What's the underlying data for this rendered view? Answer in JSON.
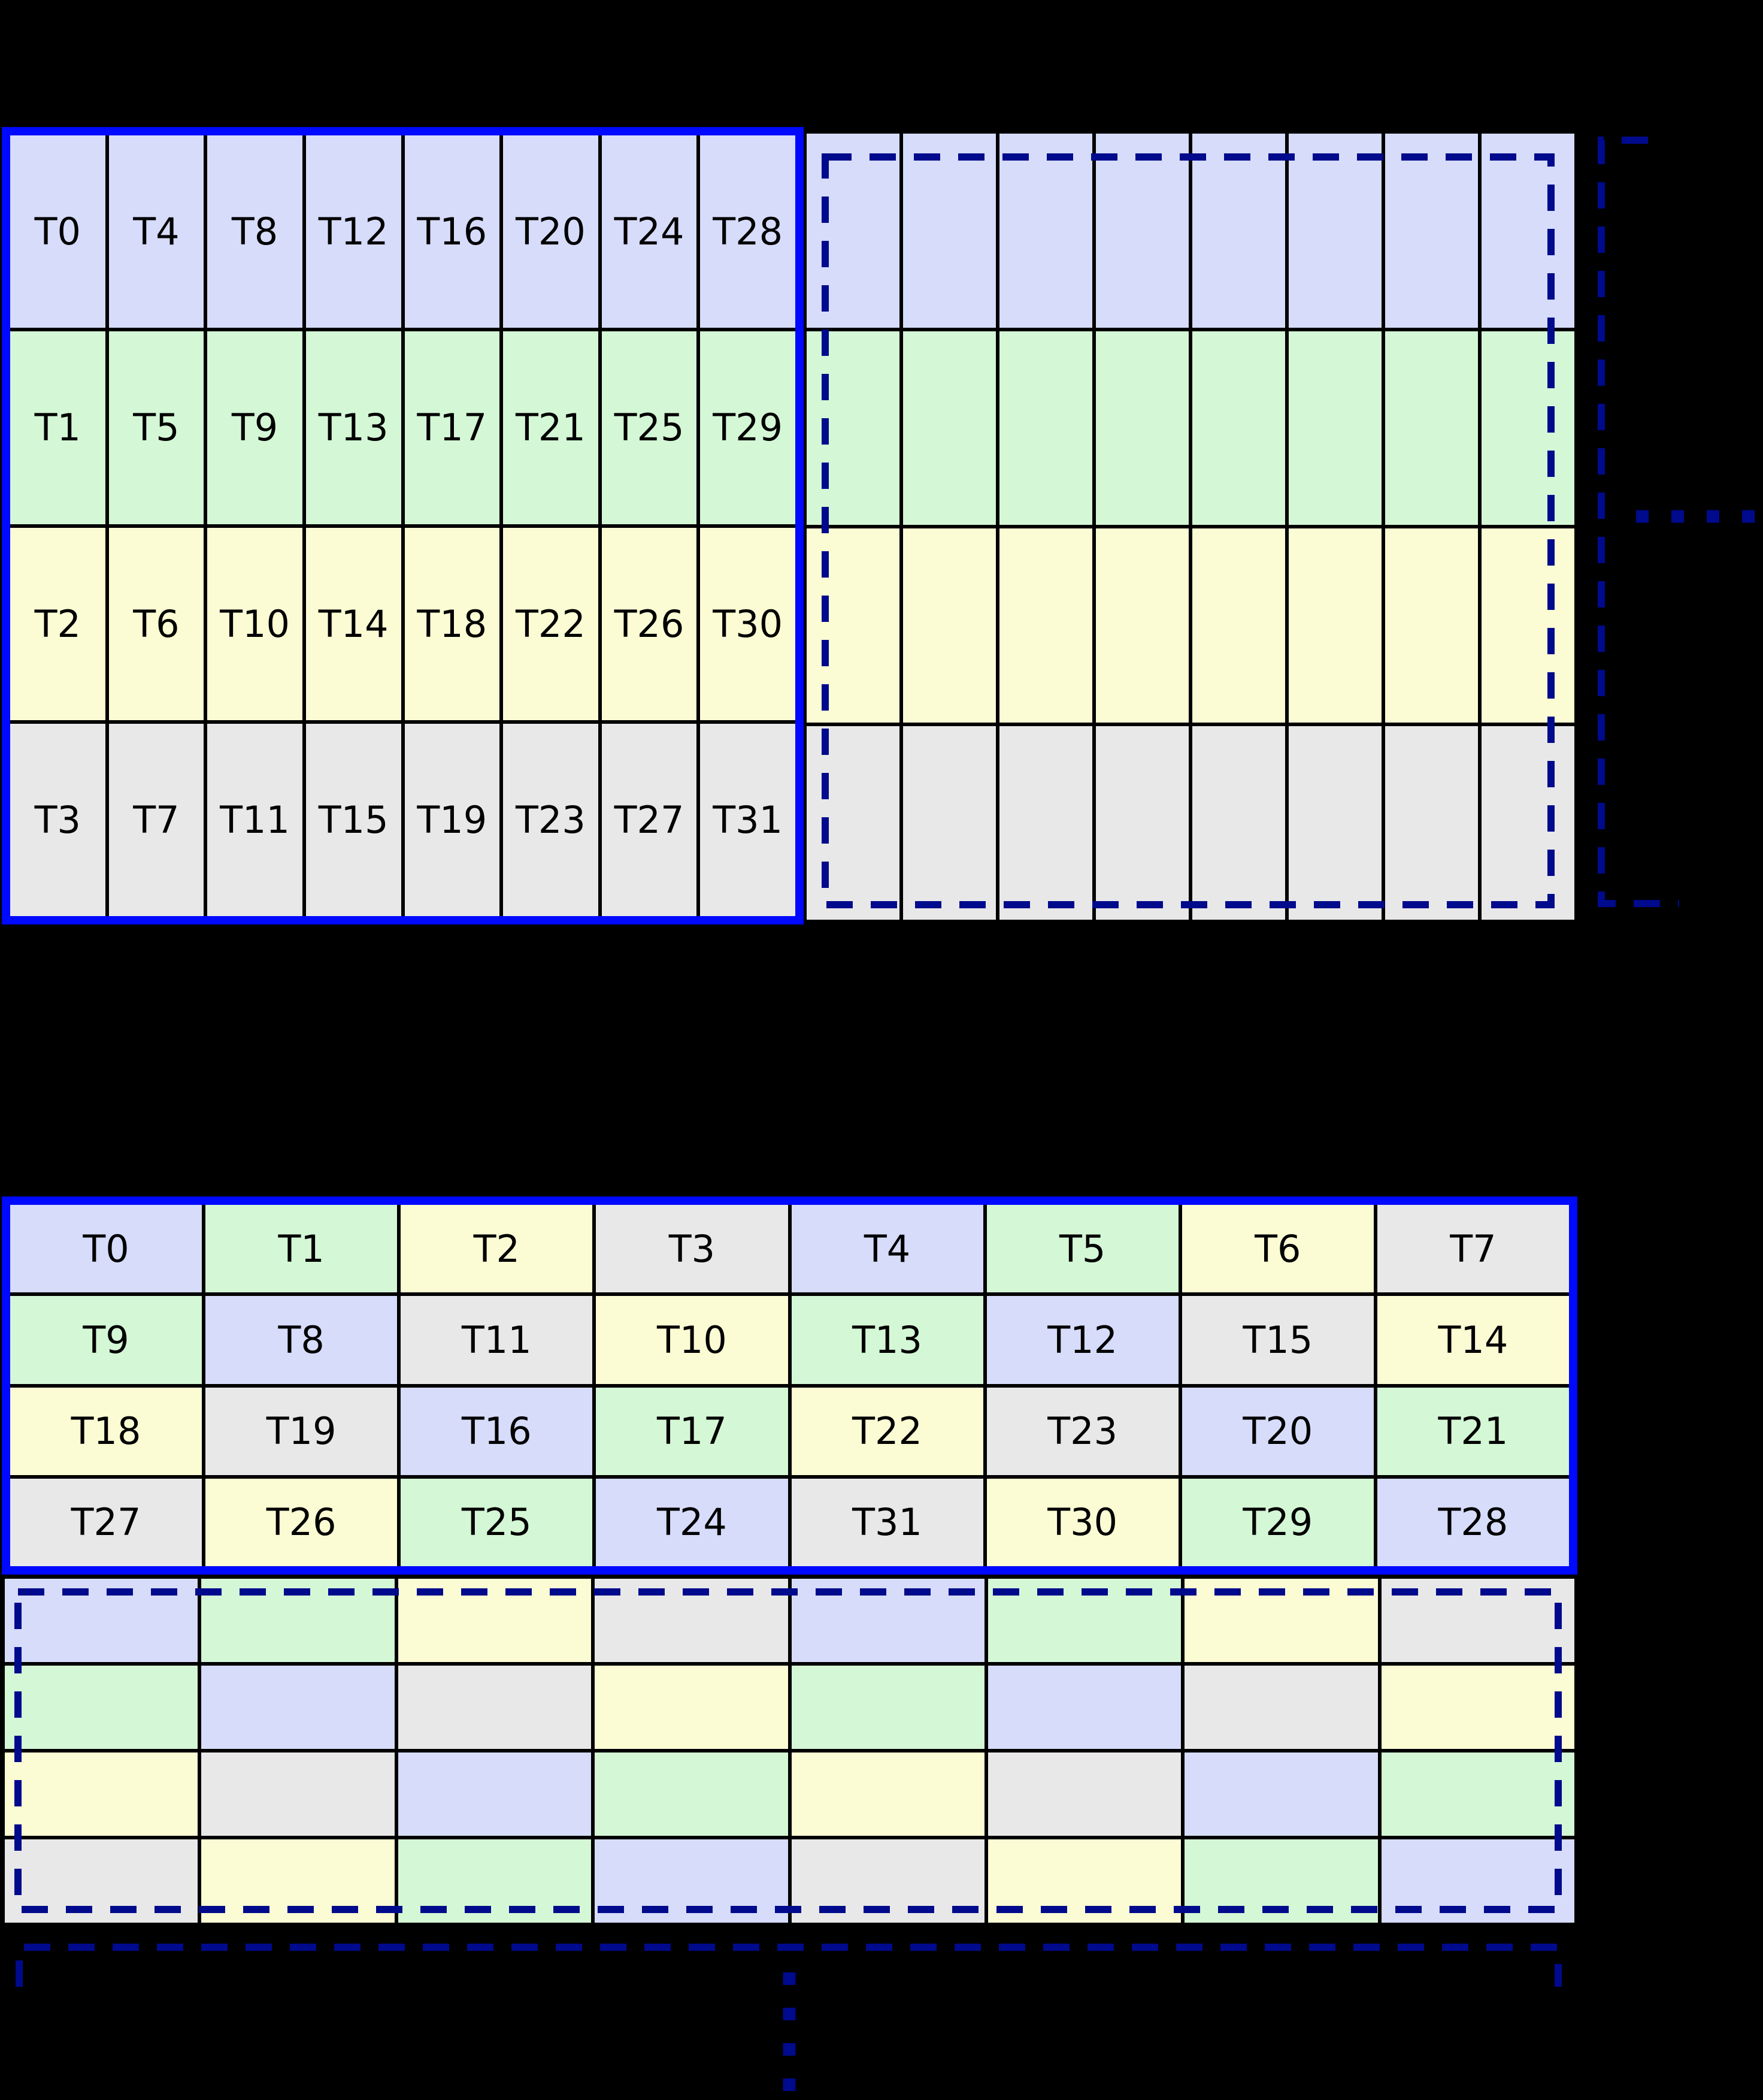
{
  "palette": {
    "background": "#000000",
    "grid_line": "#000000",
    "warp_border_blue": "#0009ff",
    "dash_navy": "#000a8c",
    "label_color": "#000000",
    "cell_blue": "#d6dcfa",
    "cell_green": "#d4f7d6",
    "cell_yellow": "#fcfcd4",
    "cell_gray": "#e8e8e8"
  },
  "figure_top": {
    "description_visible_text": "",
    "labeled_block": {
      "columns": 8,
      "rows": [
        [
          {
            "t": "T0",
            "c": "cell_blue"
          },
          {
            "t": "T4",
            "c": "cell_blue"
          },
          {
            "t": "T8",
            "c": "cell_blue"
          },
          {
            "t": "T12",
            "c": "cell_blue"
          },
          {
            "t": "T16",
            "c": "cell_blue"
          },
          {
            "t": "T20",
            "c": "cell_blue"
          },
          {
            "t": "T24",
            "c": "cell_blue"
          },
          {
            "t": "T28",
            "c": "cell_blue"
          }
        ],
        [
          {
            "t": "T1",
            "c": "cell_green"
          },
          {
            "t": "T5",
            "c": "cell_green"
          },
          {
            "t": "T9",
            "c": "cell_green"
          },
          {
            "t": "T13",
            "c": "cell_green"
          },
          {
            "t": "T17",
            "c": "cell_green"
          },
          {
            "t": "T21",
            "c": "cell_green"
          },
          {
            "t": "T25",
            "c": "cell_green"
          },
          {
            "t": "T29",
            "c": "cell_green"
          }
        ],
        [
          {
            "t": "T2",
            "c": "cell_yellow"
          },
          {
            "t": "T6",
            "c": "cell_yellow"
          },
          {
            "t": "T10",
            "c": "cell_yellow"
          },
          {
            "t": "T14",
            "c": "cell_yellow"
          },
          {
            "t": "T18",
            "c": "cell_yellow"
          },
          {
            "t": "T22",
            "c": "cell_yellow"
          },
          {
            "t": "T26",
            "c": "cell_yellow"
          },
          {
            "t": "T30",
            "c": "cell_yellow"
          }
        ],
        [
          {
            "t": "T3",
            "c": "cell_gray"
          },
          {
            "t": "T7",
            "c": "cell_gray"
          },
          {
            "t": "T11",
            "c": "cell_gray"
          },
          {
            "t": "T15",
            "c": "cell_gray"
          },
          {
            "t": "T19",
            "c": "cell_gray"
          },
          {
            "t": "T23",
            "c": "cell_gray"
          },
          {
            "t": "T27",
            "c": "cell_gray"
          },
          {
            "t": "T31",
            "c": "cell_gray"
          }
        ]
      ]
    },
    "repeat_block": {
      "columns": 8,
      "rows": [
        [
          {
            "t": "",
            "c": "cell_blue"
          },
          {
            "t": "",
            "c": "cell_blue"
          },
          {
            "t": "",
            "c": "cell_blue"
          },
          {
            "t": "",
            "c": "cell_blue"
          },
          {
            "t": "",
            "c": "cell_blue"
          },
          {
            "t": "",
            "c": "cell_blue"
          },
          {
            "t": "",
            "c": "cell_blue"
          },
          {
            "t": "",
            "c": "cell_blue"
          }
        ],
        [
          {
            "t": "",
            "c": "cell_green"
          },
          {
            "t": "",
            "c": "cell_green"
          },
          {
            "t": "",
            "c": "cell_green"
          },
          {
            "t": "",
            "c": "cell_green"
          },
          {
            "t": "",
            "c": "cell_green"
          },
          {
            "t": "",
            "c": "cell_green"
          },
          {
            "t": "",
            "c": "cell_green"
          },
          {
            "t": "",
            "c": "cell_green"
          }
        ],
        [
          {
            "t": "",
            "c": "cell_yellow"
          },
          {
            "t": "",
            "c": "cell_yellow"
          },
          {
            "t": "",
            "c": "cell_yellow"
          },
          {
            "t": "",
            "c": "cell_yellow"
          },
          {
            "t": "",
            "c": "cell_yellow"
          },
          {
            "t": "",
            "c": "cell_yellow"
          },
          {
            "t": "",
            "c": "cell_yellow"
          },
          {
            "t": "",
            "c": "cell_yellow"
          }
        ],
        [
          {
            "t": "",
            "c": "cell_gray"
          },
          {
            "t": "",
            "c": "cell_gray"
          },
          {
            "t": "",
            "c": "cell_gray"
          },
          {
            "t": "",
            "c": "cell_gray"
          },
          {
            "t": "",
            "c": "cell_gray"
          },
          {
            "t": "",
            "c": "cell_gray"
          },
          {
            "t": "",
            "c": "cell_gray"
          },
          {
            "t": "",
            "c": "cell_gray"
          }
        ]
      ]
    },
    "continuation": "horizontal-ellipsis-right"
  },
  "figure_bottom": {
    "description_visible_text": "",
    "labeled_block": {
      "columns": 8,
      "rows": [
        [
          {
            "t": "T0",
            "c": "cell_blue"
          },
          {
            "t": "T1",
            "c": "cell_green"
          },
          {
            "t": "T2",
            "c": "cell_yellow"
          },
          {
            "t": "T3",
            "c": "cell_gray"
          },
          {
            "t": "T4",
            "c": "cell_blue"
          },
          {
            "t": "T5",
            "c": "cell_green"
          },
          {
            "t": "T6",
            "c": "cell_yellow"
          },
          {
            "t": "T7",
            "c": "cell_gray"
          }
        ],
        [
          {
            "t": "T9",
            "c": "cell_green"
          },
          {
            "t": "T8",
            "c": "cell_blue"
          },
          {
            "t": "T11",
            "c": "cell_gray"
          },
          {
            "t": "T10",
            "c": "cell_yellow"
          },
          {
            "t": "T13",
            "c": "cell_green"
          },
          {
            "t": "T12",
            "c": "cell_blue"
          },
          {
            "t": "T15",
            "c": "cell_gray"
          },
          {
            "t": "T14",
            "c": "cell_yellow"
          }
        ],
        [
          {
            "t": "T18",
            "c": "cell_yellow"
          },
          {
            "t": "T19",
            "c": "cell_gray"
          },
          {
            "t": "T16",
            "c": "cell_blue"
          },
          {
            "t": "T17",
            "c": "cell_green"
          },
          {
            "t": "T22",
            "c": "cell_yellow"
          },
          {
            "t": "T23",
            "c": "cell_gray"
          },
          {
            "t": "T20",
            "c": "cell_blue"
          },
          {
            "t": "T21",
            "c": "cell_green"
          }
        ],
        [
          {
            "t": "T27",
            "c": "cell_gray"
          },
          {
            "t": "T26",
            "c": "cell_yellow"
          },
          {
            "t": "T25",
            "c": "cell_green"
          },
          {
            "t": "T24",
            "c": "cell_blue"
          },
          {
            "t": "T31",
            "c": "cell_gray"
          },
          {
            "t": "T30",
            "c": "cell_yellow"
          },
          {
            "t": "T29",
            "c": "cell_green"
          },
          {
            "t": "T28",
            "c": "cell_blue"
          }
        ]
      ]
    },
    "repeat_block": {
      "columns": 8,
      "rows": [
        [
          {
            "t": "",
            "c": "cell_blue"
          },
          {
            "t": "",
            "c": "cell_green"
          },
          {
            "t": "",
            "c": "cell_yellow"
          },
          {
            "t": "",
            "c": "cell_gray"
          },
          {
            "t": "",
            "c": "cell_blue"
          },
          {
            "t": "",
            "c": "cell_green"
          },
          {
            "t": "",
            "c": "cell_yellow"
          },
          {
            "t": "",
            "c": "cell_gray"
          }
        ],
        [
          {
            "t": "",
            "c": "cell_green"
          },
          {
            "t": "",
            "c": "cell_blue"
          },
          {
            "t": "",
            "c": "cell_gray"
          },
          {
            "t": "",
            "c": "cell_yellow"
          },
          {
            "t": "",
            "c": "cell_green"
          },
          {
            "t": "",
            "c": "cell_blue"
          },
          {
            "t": "",
            "c": "cell_gray"
          },
          {
            "t": "",
            "c": "cell_yellow"
          }
        ],
        [
          {
            "t": "",
            "c": "cell_yellow"
          },
          {
            "t": "",
            "c": "cell_gray"
          },
          {
            "t": "",
            "c": "cell_blue"
          },
          {
            "t": "",
            "c": "cell_green"
          },
          {
            "t": "",
            "c": "cell_yellow"
          },
          {
            "t": "",
            "c": "cell_gray"
          },
          {
            "t": "",
            "c": "cell_blue"
          },
          {
            "t": "",
            "c": "cell_green"
          }
        ],
        [
          {
            "t": "",
            "c": "cell_gray"
          },
          {
            "t": "",
            "c": "cell_yellow"
          },
          {
            "t": "",
            "c": "cell_green"
          },
          {
            "t": "",
            "c": "cell_blue"
          },
          {
            "t": "",
            "c": "cell_gray"
          },
          {
            "t": "",
            "c": "cell_yellow"
          },
          {
            "t": "",
            "c": "cell_green"
          },
          {
            "t": "",
            "c": "cell_blue"
          }
        ]
      ]
    },
    "continuation": "vertical-ellipsis-down"
  }
}
